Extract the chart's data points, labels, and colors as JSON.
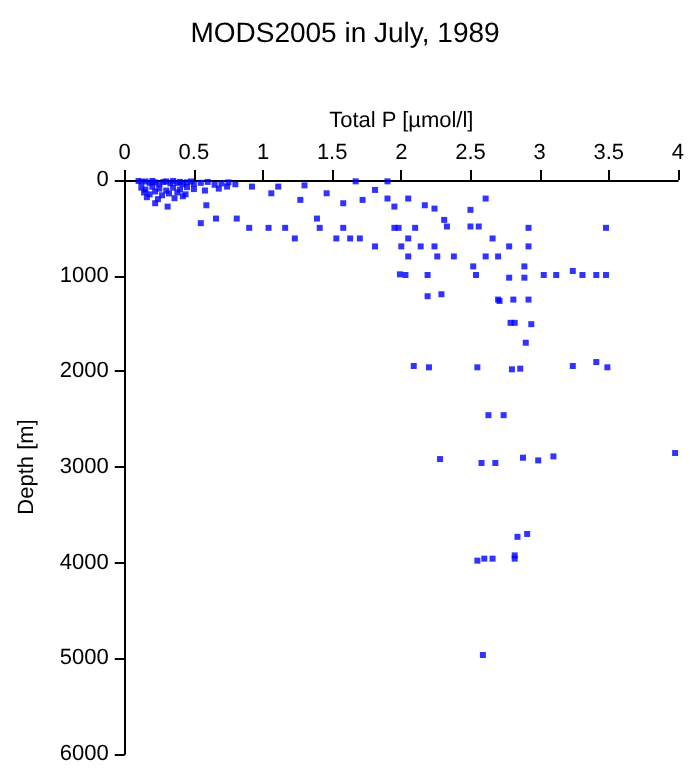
{
  "chart_data": {
    "type": "scatter",
    "title": "MODS2005 in July, 1989",
    "xlabel": "Total P [µmol/l]",
    "ylabel": "Depth [m]",
    "x": [
      0.1,
      0.12,
      0.15,
      0.18,
      0.2,
      0.22,
      0.25,
      0.28,
      0.3,
      0.33,
      0.35,
      0.38,
      0.4,
      0.42,
      0.45,
      0.48,
      0.5,
      0.55,
      0.6,
      0.65,
      0.7,
      0.75,
      0.8,
      0.12,
      0.15,
      0.2,
      0.25,
      0.3,
      0.35,
      0.4,
      0.45,
      0.5,
      0.14,
      0.18,
      0.22,
      0.27,
      0.32,
      0.38,
      0.44,
      0.16,
      0.24,
      0.36,
      0.42,
      0.58,
      0.68,
      0.22,
      0.31,
      0.55,
      0.66,
      0.81,
      0.9,
      1.04,
      1.16,
      1.23,
      1.41,
      1.53,
      1.58,
      1.63,
      1.7,
      1.81,
      1.95,
      2.0,
      1.99,
      1.39,
      1.27,
      1.46,
      1.58,
      1.72,
      1.81,
      1.9,
      1.95,
      0.92,
      1.11,
      1.3,
      1.67,
      1.9,
      1.06,
      0.74,
      0.59,
      2.05,
      2.17,
      2.24,
      2.31,
      2.5,
      2.61,
      1.98,
      2.1,
      2.33,
      2.56,
      2.92,
      3.48,
      2.05,
      2.14,
      2.24,
      2.38,
      2.66,
      2.78,
      2.92,
      2.05,
      2.26,
      2.52,
      2.7,
      2.89,
      2.03,
      2.19,
      2.54,
      2.78,
      2.89,
      3.03,
      3.12,
      3.24,
      3.31,
      3.41,
      3.48,
      2.19,
      2.29,
      2.7,
      2.81,
      2.92,
      2.61,
      2.5,
      2.71,
      2.79,
      2.82,
      2.94,
      2.9,
      2.09,
      2.2,
      2.55,
      2.8,
      2.86,
      3.24,
      3.41,
      3.49,
      2.63,
      2.74,
      2.28,
      2.58,
      2.68,
      2.88,
      2.99,
      3.1,
      3.98,
      2.91,
      2.84,
      2.55,
      2.6,
      2.66,
      2.82,
      2.82,
      2.59
    ],
    "values": [
      10,
      20,
      15,
      30,
      10,
      25,
      40,
      20,
      15,
      35,
      10,
      30,
      20,
      45,
      25,
      15,
      40,
      30,
      20,
      50,
      35,
      25,
      45,
      80,
      100,
      70,
      90,
      110,
      80,
      100,
      75,
      95,
      130,
      150,
      120,
      160,
      140,
      130,
      150,
      180,
      200,
      190,
      170,
      110,
      90,
      243,
      278,
      451,
      403,
      403,
      500,
      500,
      500,
      611,
      500,
      611,
      500,
      611,
      611,
      694,
      500,
      694,
      986,
      403,
      208,
      139,
      243,
      208,
      104,
      194,
      278,
      69,
      69,
      56,
      14,
      14,
      139,
      69,
      264,
      194,
      264,
      299,
      417,
      312,
      194,
      500,
      500,
      486,
      486,
      500,
      500,
      611,
      694,
      694,
      799,
      611,
      694,
      694,
      799,
      799,
      903,
      799,
      903,
      993,
      993,
      993,
      1021,
      1021,
      993,
      993,
      951,
      993,
      993,
      993,
      1215,
      1194,
      1250,
      1250,
      1250,
      799,
      486,
      1264,
      1493,
      1493,
      1507,
      1701,
      1944,
      1958,
      1958,
      1979,
      1972,
      1944,
      1903,
      1958,
      2458,
      2458,
      2917,
      2958,
      2958,
      2903,
      2931,
      2889,
      2854,
      3700,
      3730,
      3979,
      3958,
      3958,
      3924,
      3958,
      4965
    ],
    "color": "#0000ff",
    "marker": "square",
    "xlim": [
      0,
      4
    ],
    "xticks": [
      0,
      0.5,
      1,
      1.5,
      2,
      2.5,
      3,
      3.5,
      4
    ],
    "ylim": [
      6000,
      0
    ],
    "yticks": [
      0,
      1000,
      2000,
      3000,
      4000,
      5000,
      6000
    ]
  }
}
